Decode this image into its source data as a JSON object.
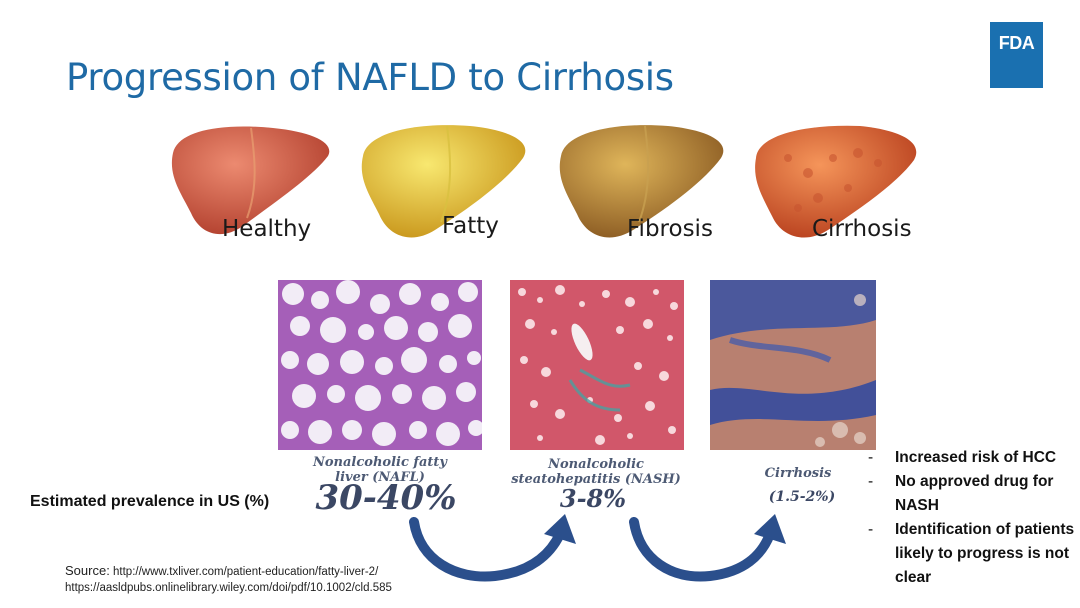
{
  "slide": {
    "title": "Progression of NAFLD to Cirrhosis",
    "logo_text": "FDA",
    "livers": [
      {
        "label": "Healthy",
        "color": "#d4604a"
      },
      {
        "label": "Fatty",
        "color": "#e8c22a"
      },
      {
        "label": "Fibrosis",
        "color": "#c0862e"
      },
      {
        "label": "Cirrhosis",
        "color": "#e0663a"
      }
    ],
    "stages": [
      {
        "label_line1": "Nonalcoholic fatty",
        "label_line2": "liver (NAFL)",
        "prevalence": "30-40%"
      },
      {
        "label_line1": "Nonalcoholic",
        "label_line2": "steatohepatitis (NASH)",
        "prevalence": "3-8%"
      },
      {
        "label_line1": "Cirrhosis",
        "label_line2": "",
        "prevalence": "(1.5-2%)"
      }
    ],
    "prevalence_label": "Estimated prevalence in US (%)",
    "notes": [
      "Increased risk of HCC",
      "No approved drug for NASH",
      "Identification of patients likely to progress is not clear"
    ],
    "source": {
      "prefix": "Source:",
      "url1": "http://www.txliver.com/patient-education/fatty-liver-2/",
      "url2": "https://aasldpubs.onlinelibrary.wiley.com/doi/pdf/10.1002/cld.585"
    },
    "colors": {
      "title": "#1f6aa5",
      "fda_blue": "#1a70b0",
      "arrow": "#2b4f8c"
    }
  }
}
